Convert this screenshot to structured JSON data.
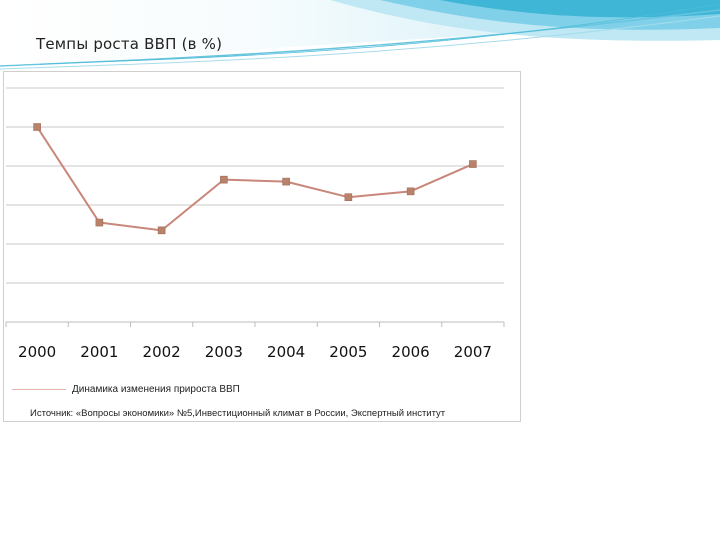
{
  "slide": {
    "title": "Темпы роста ВВП (в %)",
    "accent_color": "#3fb6d6"
  },
  "chart_data": {
    "type": "line",
    "title": "",
    "xlabel": "",
    "ylabel": "",
    "categories": [
      "2000",
      "2001",
      "2002",
      "2003",
      "2004",
      "2005",
      "2006",
      "2007"
    ],
    "series": [
      {
        "name": "Динамика изменения прироста ВВП",
        "values": [
          10.0,
          5.1,
          4.7,
          7.3,
          7.2,
          6.4,
          6.7,
          8.1
        ],
        "color": "#c9867a",
        "marker_color": "#b9826a"
      }
    ],
    "ylim": [
      0,
      12
    ],
    "y_gridlines": [
      0,
      2,
      4,
      6,
      8,
      10,
      12
    ],
    "grid": true,
    "legend": "bottom-left",
    "source": "Источник: «Вопросы экономики» №5,Инвестиционный климат в России, Экспертный институт"
  }
}
